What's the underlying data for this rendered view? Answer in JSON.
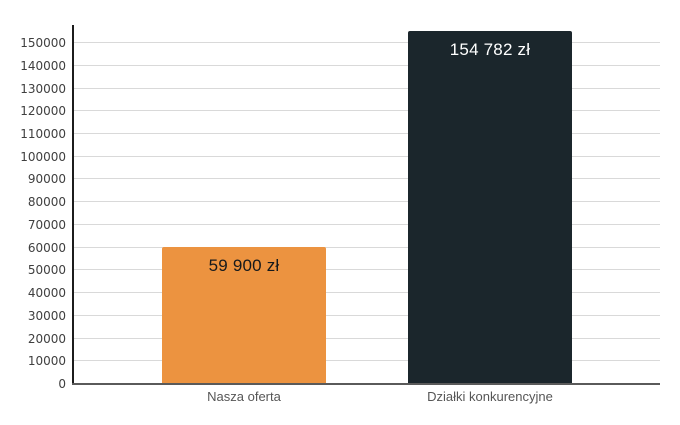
{
  "chart_data": {
    "type": "bar",
    "title": "",
    "xlabel": "",
    "ylabel": "",
    "categories": [
      "Nasza oferta",
      "Działki konkurencyjne"
    ],
    "values": [
      59900,
      154782
    ],
    "bar_labels": [
      "59 900 zł",
      "154 782 zł"
    ],
    "bar_colors": [
      "#EC9340",
      "#1B262C"
    ],
    "bar_label_colors": [
      "#15191C",
      "#FFFFFF"
    ],
    "currency": "zł",
    "ylim": [
      0,
      157500
    ],
    "yticks": [
      0,
      10000,
      20000,
      30000,
      40000,
      50000,
      60000,
      70000,
      80000,
      90000,
      100000,
      110000,
      120000,
      130000,
      140000,
      150000
    ],
    "ytick_labels": [
      "0",
      "10000",
      "20000",
      "30000",
      "40000",
      "50000",
      "60000",
      "70000",
      "80000",
      "90000",
      "100000",
      "110000",
      "120000",
      "130000",
      "140000",
      "150000"
    ],
    "grid": true,
    "legend": "none",
    "colors": {
      "background": "#FFFFFF",
      "gridline": "#D9D9D9",
      "y_axis_line": "#1C1C1C",
      "x_axis_line": "#5A5A5A",
      "y_tick_text": "#3F3F3F",
      "category_text": "#565656"
    }
  }
}
